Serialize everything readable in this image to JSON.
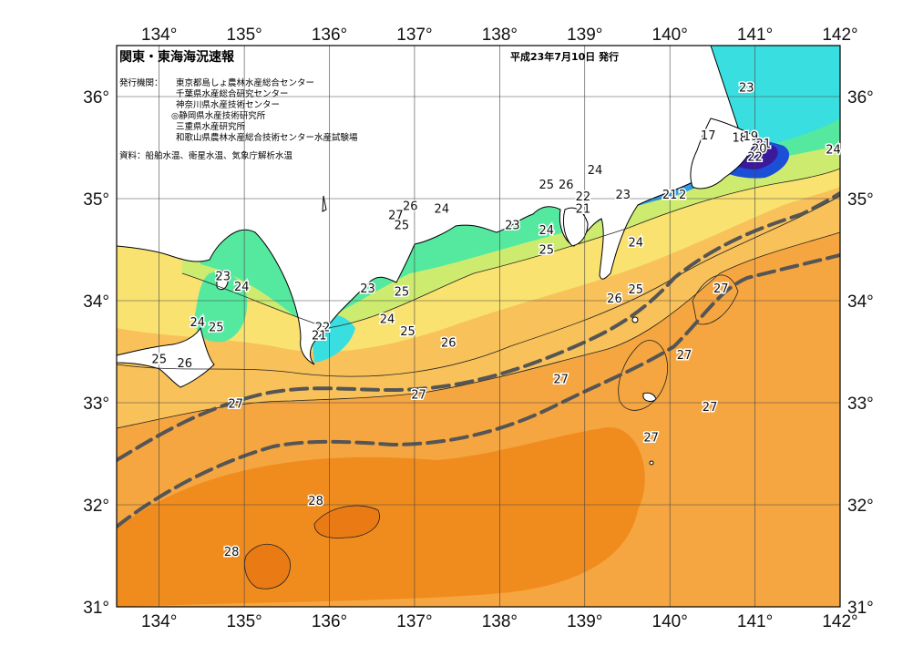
{
  "header": {
    "title": "関東・東海海況速報",
    "date": "平成23年7月10日 発行",
    "issuers_label": "発行機関：",
    "issuers": [
      "東京都島しょ農林水産総合センター",
      "千葉県水産総合研究センター",
      "神奈川県水産技術センター",
      "◎静岡県水産技術研究所",
      "三重県水産研究所",
      "和歌山県農林水産総合技術センター水産試験場"
    ],
    "source": "資料：船舶水温、衛星水温、気象庁解析水温"
  },
  "axes": {
    "lon": [
      134,
      135,
      136,
      137,
      138,
      139,
      140,
      141,
      142
    ],
    "lat": [
      36,
      35,
      34,
      33,
      32,
      31
    ],
    "lon_labels": [
      "134°",
      "135°",
      "136°",
      "137°",
      "138°",
      "139°",
      "140°",
      "141°",
      "142°"
    ],
    "lat_labels": [
      "36°",
      "35°",
      "34°",
      "33°",
      "32°",
      "31°"
    ],
    "lon_range": [
      133.5,
      142
    ],
    "lat_range": [
      31,
      36.5
    ]
  },
  "colors": {
    "temp_28": "#f08c1e",
    "temp_27": "#f5a640",
    "temp_26": "#f8c15a",
    "temp_25": "#f9e270",
    "temp_24": "#cdec6f",
    "temp_23": "#55e9a0",
    "temp_22": "#39dfe0",
    "temp_21": "#2f9fe8",
    "temp_20": "#1c4fd8",
    "temp_19": "#3a1a9a",
    "temp_18": "#d9c7ef",
    "kuroshio_line": "#555555",
    "land": "#ffffff"
  },
  "contour_labels": [
    {
      "text": "23",
      "lon": 140.9,
      "lat": 36.05
    },
    {
      "text": "17",
      "lon": 140.45,
      "lat": 35.58
    },
    {
      "text": "18",
      "lon": 140.82,
      "lat": 35.56
    },
    {
      "text": "19",
      "lon": 140.95,
      "lat": 35.57
    },
    {
      "text": "21",
      "lon": 141.1,
      "lat": 35.5
    },
    {
      "text": "20",
      "lon": 141.05,
      "lat": 35.45
    },
    {
      "text": "22",
      "lon": 141.0,
      "lat": 35.37
    },
    {
      "text": "24",
      "lon": 141.92,
      "lat": 35.44
    },
    {
      "text": "24",
      "lon": 139.12,
      "lat": 35.24
    },
    {
      "text": "25",
      "lon": 138.55,
      "lat": 35.1
    },
    {
      "text": "26",
      "lon": 138.78,
      "lat": 35.1
    },
    {
      "text": "22",
      "lon": 138.98,
      "lat": 34.98
    },
    {
      "text": "21",
      "lon": 138.98,
      "lat": 34.86
    },
    {
      "text": "23",
      "lon": 139.45,
      "lat": 35.0
    },
    {
      "text": "21",
      "lon": 140.0,
      "lat": 35.0
    },
    {
      "text": "2",
      "lon": 140.15,
      "lat": 35.0
    },
    {
      "text": "24",
      "lon": 137.32,
      "lat": 34.86
    },
    {
      "text": "26",
      "lon": 136.95,
      "lat": 34.89
    },
    {
      "text": "27",
      "lon": 136.78,
      "lat": 34.8
    },
    {
      "text": "25",
      "lon": 136.85,
      "lat": 34.7
    },
    {
      "text": "23",
      "lon": 138.15,
      "lat": 34.7
    },
    {
      "text": "24",
      "lon": 138.55,
      "lat": 34.65
    },
    {
      "text": "25",
      "lon": 138.55,
      "lat": 34.46
    },
    {
      "text": "24",
      "lon": 139.6,
      "lat": 34.53
    },
    {
      "text": "23",
      "lon": 134.75,
      "lat": 34.2
    },
    {
      "text": "24",
      "lon": 134.97,
      "lat": 34.1
    },
    {
      "text": "23",
      "lon": 136.45,
      "lat": 34.08
    },
    {
      "text": "25",
      "lon": 136.85,
      "lat": 34.05
    },
    {
      "text": "25",
      "lon": 139.6,
      "lat": 34.07
    },
    {
      "text": "26",
      "lon": 139.35,
      "lat": 33.98
    },
    {
      "text": "27",
      "lon": 140.6,
      "lat": 34.08
    },
    {
      "text": "24",
      "lon": 134.45,
      "lat": 33.75
    },
    {
      "text": "25",
      "lon": 134.67,
      "lat": 33.7
    },
    {
      "text": "22",
      "lon": 135.92,
      "lat": 33.7
    },
    {
      "text": "21",
      "lon": 135.88,
      "lat": 33.62
    },
    {
      "text": "24",
      "lon": 136.68,
      "lat": 33.78
    },
    {
      "text": "25",
      "lon": 136.92,
      "lat": 33.66
    },
    {
      "text": "26",
      "lon": 137.4,
      "lat": 33.55
    },
    {
      "text": "25",
      "lon": 134.0,
      "lat": 33.39
    },
    {
      "text": "26",
      "lon": 134.3,
      "lat": 33.35
    },
    {
      "text": "27",
      "lon": 140.17,
      "lat": 33.43
    },
    {
      "text": "27",
      "lon": 138.72,
      "lat": 33.19
    },
    {
      "text": "27",
      "lon": 137.05,
      "lat": 33.04
    },
    {
      "text": "27",
      "lon": 134.9,
      "lat": 32.95
    },
    {
      "text": "27",
      "lon": 140.47,
      "lat": 32.92
    },
    {
      "text": "27",
      "lon": 139.78,
      "lat": 32.62
    },
    {
      "text": "28",
      "lon": 135.84,
      "lat": 32.0
    },
    {
      "text": "28",
      "lon": 134.85,
      "lat": 31.5
    }
  ]
}
